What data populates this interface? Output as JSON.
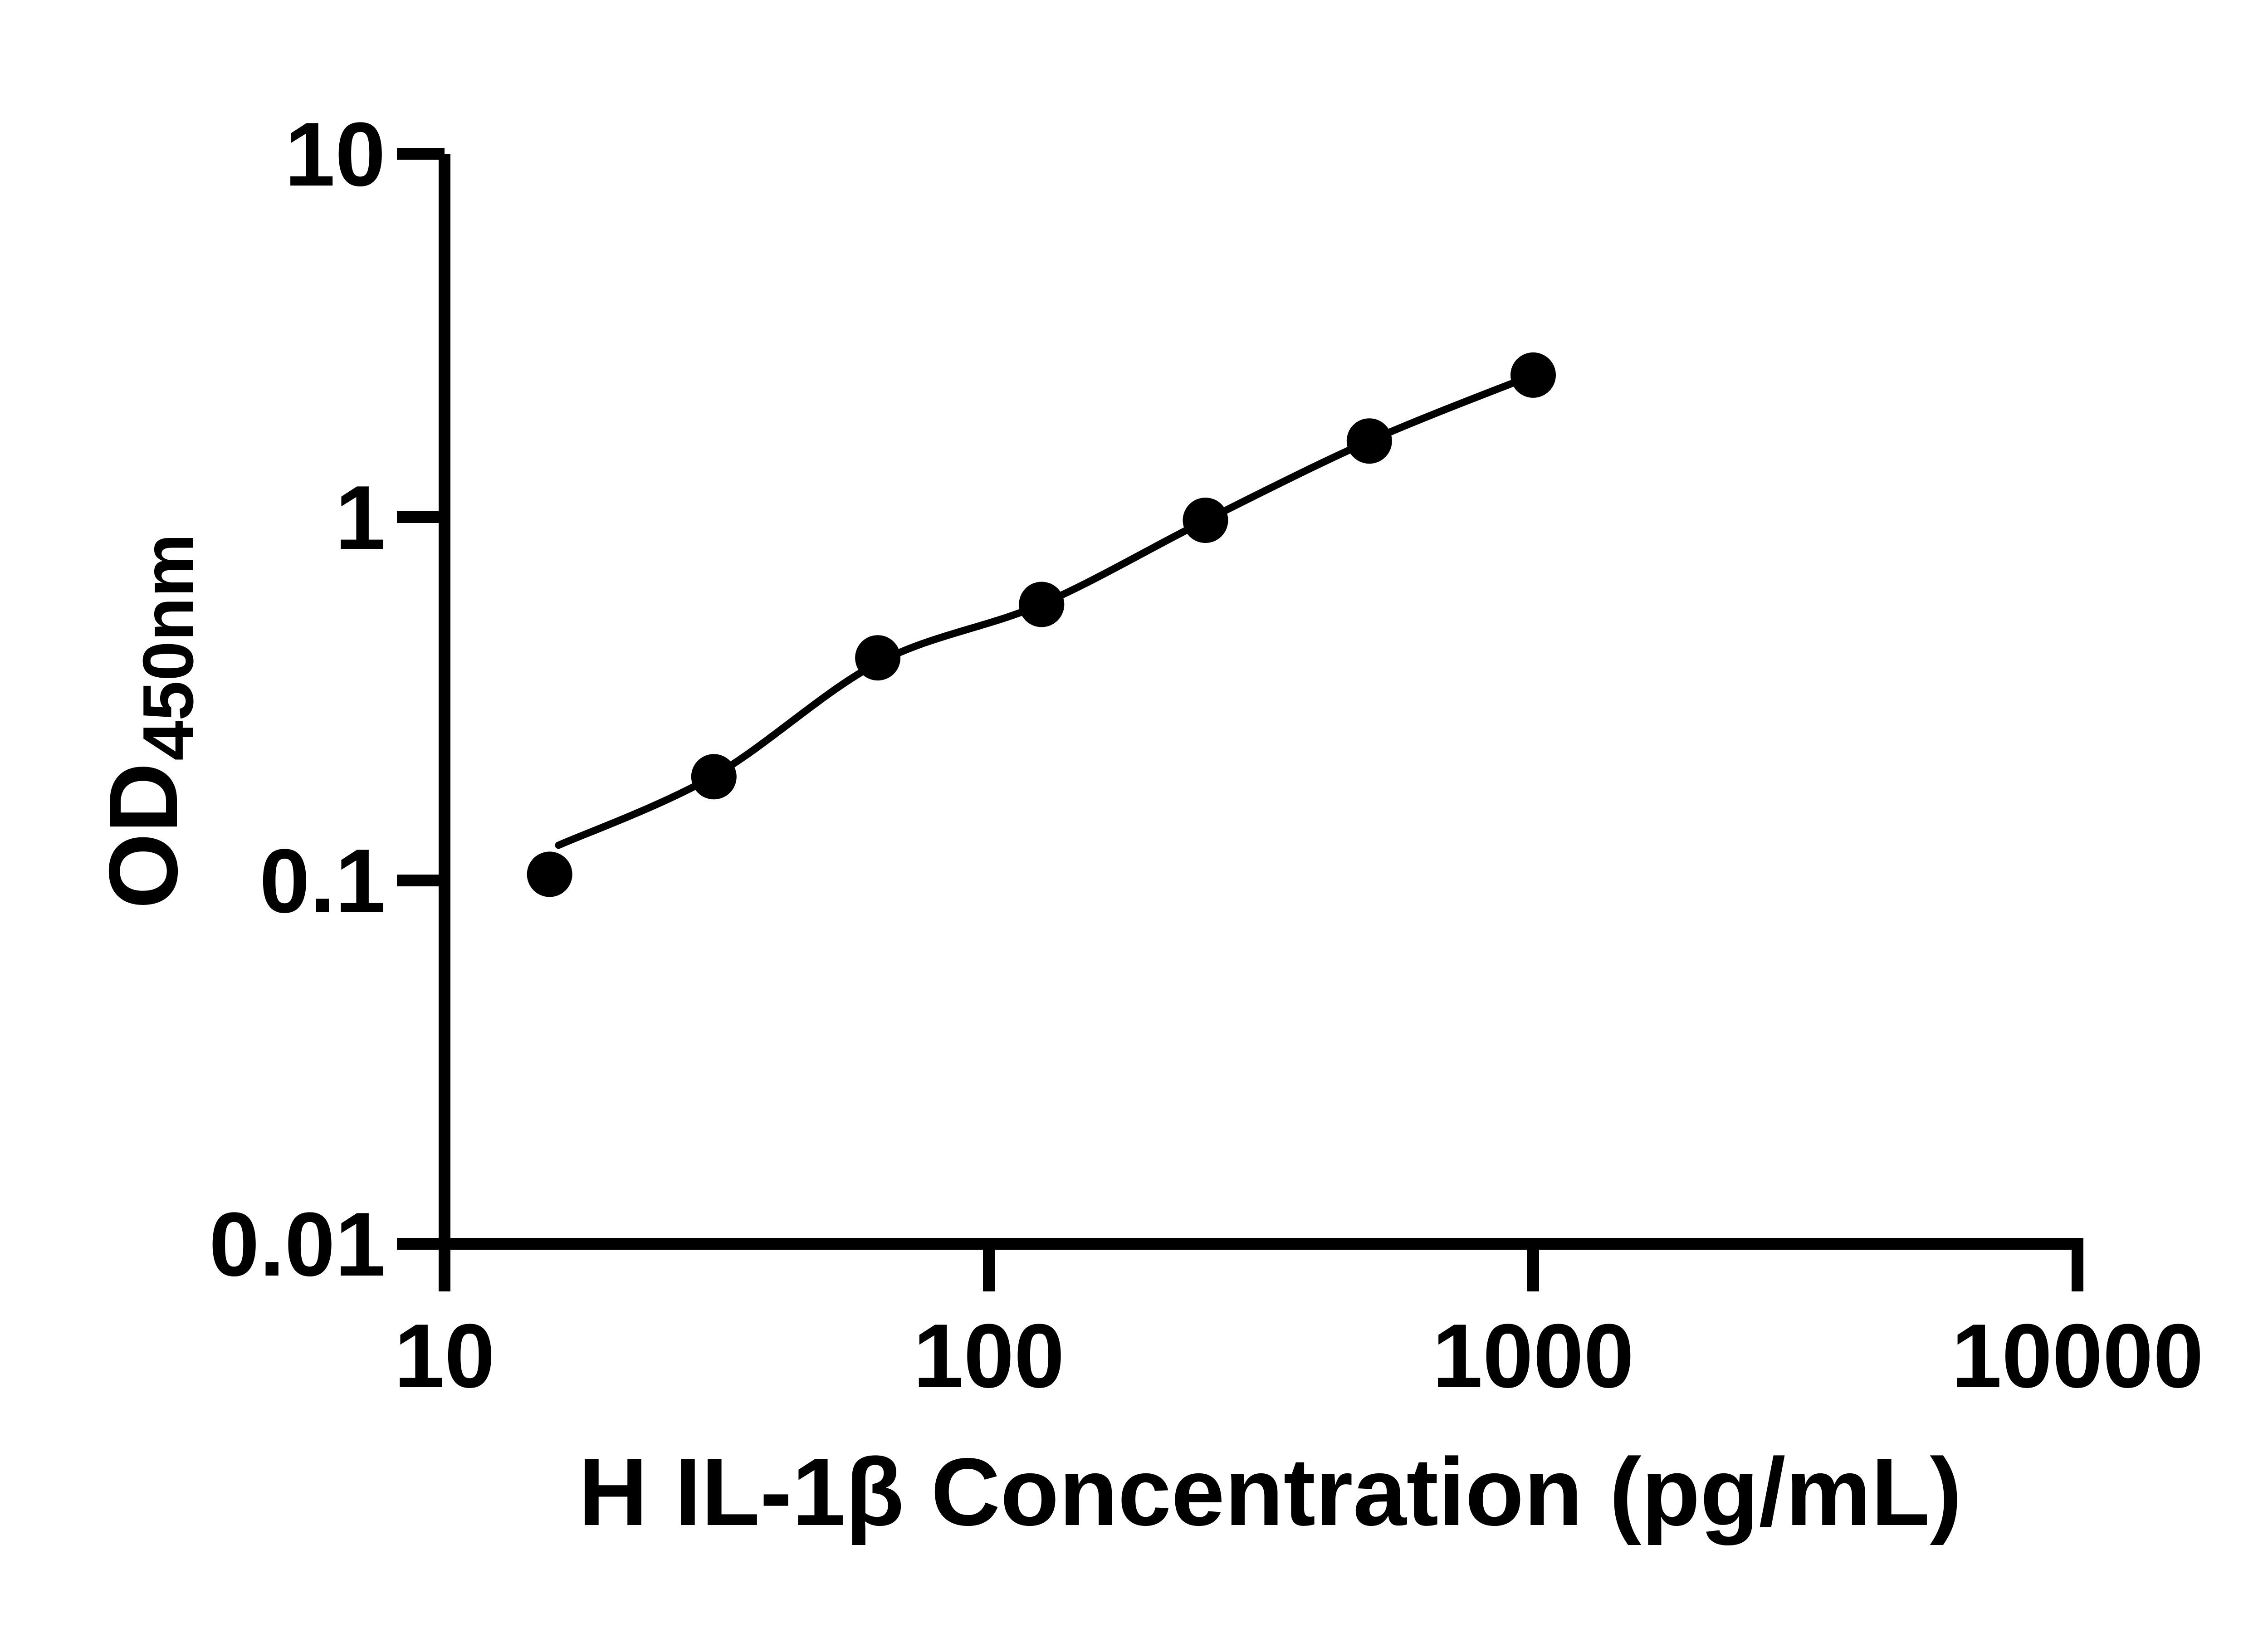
{
  "figure": {
    "background_color": "#ffffff",
    "ink_color": "#000000"
  },
  "chart_data": {
    "type": "scatter",
    "title": "",
    "xlabel": "H IL-1β Concentration (pg/mL)",
    "ylabel_main": "OD",
    "ylabel_sub": "450nm",
    "x_scale": "log10",
    "y_scale": "log10",
    "xlim": [
      10,
      10000
    ],
    "ylim": [
      0.01,
      10
    ],
    "x_ticks": [
      10,
      100,
      1000,
      10000
    ],
    "x_tick_labels": [
      "10",
      "100",
      "1000",
      "10000"
    ],
    "y_ticks": [
      10,
      1,
      0.1,
      0.01
    ],
    "y_tick_labels": [
      "10",
      "1",
      "0.1",
      "0.01"
    ],
    "grid": false,
    "legend": null,
    "series": [
      {
        "name": "standard-curve-points",
        "marker": "filled-circle",
        "color": "#000000",
        "x": [
          15.6,
          31.25,
          62.5,
          125,
          250,
          500,
          1000
        ],
        "y": [
          0.104,
          0.193,
          0.41,
          0.575,
          0.98,
          1.62,
          2.46
        ]
      }
    ],
    "fit_curve": {
      "name": "fitted-standard-curve",
      "color": "#000000",
      "x": [
        16.2,
        31.25,
        62.5,
        125,
        250,
        500,
        1000
      ],
      "y": [
        0.125,
        0.194,
        0.397,
        0.576,
        0.979,
        1.62,
        2.46
      ]
    }
  }
}
